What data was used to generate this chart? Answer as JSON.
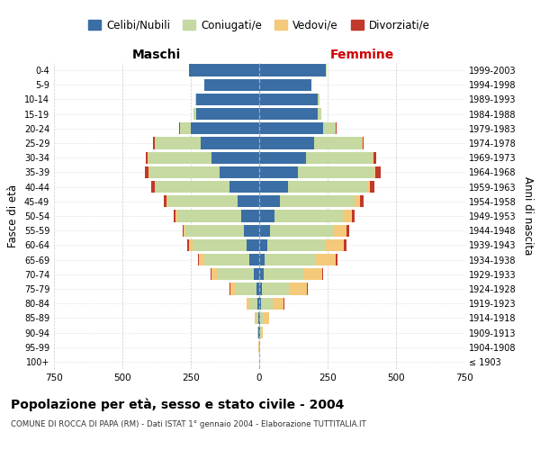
{
  "age_groups": [
    "100+",
    "95-99",
    "90-94",
    "85-89",
    "80-84",
    "75-79",
    "70-74",
    "65-69",
    "60-64",
    "55-59",
    "50-54",
    "45-49",
    "40-44",
    "35-39",
    "30-34",
    "25-29",
    "20-24",
    "15-19",
    "10-14",
    "5-9",
    "0-4"
  ],
  "birth_years": [
    "≤ 1903",
    "1904-1908",
    "1909-1913",
    "1914-1918",
    "1919-1923",
    "1924-1928",
    "1929-1933",
    "1934-1938",
    "1939-1943",
    "1944-1948",
    "1949-1953",
    "1954-1958",
    "1959-1963",
    "1964-1968",
    "1969-1973",
    "1974-1978",
    "1979-1983",
    "1984-1988",
    "1989-1993",
    "1994-1998",
    "1999-2003"
  ],
  "male": {
    "celibi": [
      0,
      0,
      2,
      2,
      5,
      10,
      20,
      35,
      45,
      55,
      65,
      80,
      110,
      145,
      175,
      215,
      250,
      230,
      230,
      200,
      255
    ],
    "coniugati": [
      0,
      1,
      3,
      8,
      30,
      80,
      130,
      165,
      200,
      215,
      235,
      255,
      270,
      255,
      230,
      165,
      40,
      10,
      5,
      2,
      2
    ],
    "vedovi": [
      0,
      1,
      3,
      8,
      10,
      15,
      25,
      20,
      12,
      5,
      5,
      5,
      3,
      3,
      2,
      2,
      1,
      0,
      0,
      0,
      0
    ],
    "divorziati": [
      0,
      0,
      0,
      0,
      0,
      2,
      3,
      5,
      5,
      5,
      8,
      10,
      12,
      15,
      8,
      5,
      2,
      1,
      0,
      0,
      0
    ]
  },
  "female": {
    "nubili": [
      0,
      0,
      2,
      3,
      5,
      10,
      15,
      20,
      30,
      40,
      55,
      75,
      105,
      140,
      170,
      200,
      235,
      215,
      215,
      190,
      245
    ],
    "coniugate": [
      0,
      1,
      4,
      12,
      45,
      100,
      145,
      185,
      215,
      230,
      255,
      275,
      290,
      280,
      245,
      175,
      45,
      12,
      5,
      2,
      2
    ],
    "vedove": [
      0,
      2,
      8,
      20,
      40,
      65,
      70,
      75,
      65,
      50,
      30,
      20,
      10,
      5,
      3,
      2,
      1,
      0,
      0,
      0,
      0
    ],
    "divorziate": [
      0,
      0,
      0,
      0,
      1,
      2,
      3,
      5,
      8,
      8,
      10,
      12,
      15,
      18,
      10,
      5,
      2,
      1,
      0,
      0,
      0
    ]
  },
  "colors": {
    "celibi": "#3a6ea5",
    "coniugati": "#c5d9a0",
    "vedovi": "#f5c97a",
    "divorziati": "#c0392b"
  },
  "xlim": 750,
  "title": "Popolazione per età, sesso e stato civile - 2004",
  "subtitle": "COMUNE DI ROCCA DI PAPA (RM) - Dati ISTAT 1° gennaio 2004 - Elaborazione TUTTITALIA.IT",
  "ylabel_left": "Fasce di età",
  "ylabel_right": "Anni di nascita",
  "xlabel_left": "Maschi",
  "xlabel_right": "Femmine",
  "legend_labels": [
    "Celibi/Nubili",
    "Coniugati/e",
    "Vedovi/e",
    "Divorziati/e"
  ],
  "background_color": "#ffffff",
  "grid_color": "#cccccc"
}
